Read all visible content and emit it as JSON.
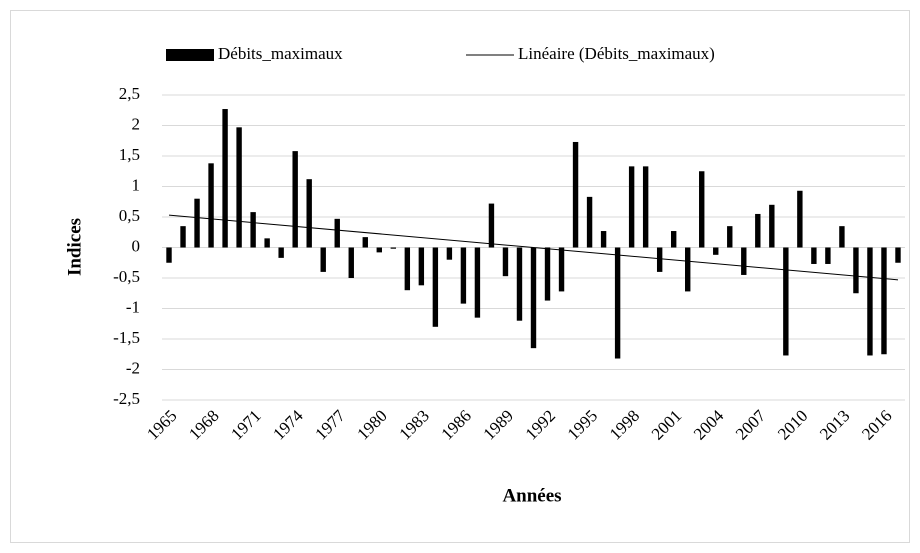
{
  "chart_data": {
    "type": "bar",
    "x_label": "Années",
    "y_label": "Indices",
    "categories": [
      "1965",
      null,
      null,
      "1968",
      null,
      null,
      "1971",
      null,
      null,
      "1974",
      null,
      null,
      "1977",
      null,
      null,
      "1980",
      null,
      null,
      "1983",
      null,
      null,
      "1986",
      null,
      null,
      "1989",
      null,
      null,
      "1992",
      null,
      null,
      "1995",
      null,
      null,
      "1998",
      null,
      null,
      "2001",
      null,
      null,
      "2004",
      null,
      null,
      "2007",
      null,
      null,
      "2010",
      null,
      null,
      "2013",
      null,
      null,
      "2016",
      null
    ],
    "series": [
      {
        "name": "Débits_maximaux",
        "color": "#000000",
        "values": [
          -0.25,
          0.35,
          0.8,
          1.38,
          2.27,
          1.97,
          0.58,
          0.15,
          -0.17,
          1.58,
          1.12,
          -0.4,
          0.47,
          -0.5,
          0.17,
          -0.08,
          -0.02,
          -0.7,
          -0.62,
          -1.3,
          -0.2,
          -0.92,
          -1.15,
          0.72,
          -0.47,
          -1.2,
          -1.65,
          -0.87,
          -0.72,
          1.73,
          0.83,
          0.27,
          -1.82,
          1.33,
          1.33,
          -0.4,
          0.27,
          -0.72,
          1.25,
          -0.12,
          0.35,
          -0.45,
          0.55,
          0.7,
          -1.77,
          0.93,
          -0.27,
          -0.27,
          0.35,
          -0.75,
          -1.77,
          -1.75,
          -0.25
        ]
      }
    ],
    "trend": {
      "name": "Linéaire (Débits_maximaux)",
      "color": "#000000",
      "values": [
        0.53,
        -0.53
      ]
    },
    "ylim": [
      -2.5,
      2.5
    ],
    "yticks": [
      {
        "value": -2.5,
        "label": "-2,5"
      },
      -2,
      {
        "value": -1.5,
        "label": "-1,5"
      },
      -1,
      {
        "value": -0.5,
        "label": "-0,5"
      },
      0,
      {
        "value": 0.5,
        "label": "0,5"
      },
      1,
      {
        "value": 1.5,
        "label": "1,5"
      },
      2,
      {
        "value": 2.5,
        "label": "2,5"
      }
    ],
    "grid": true,
    "legend": "top"
  }
}
